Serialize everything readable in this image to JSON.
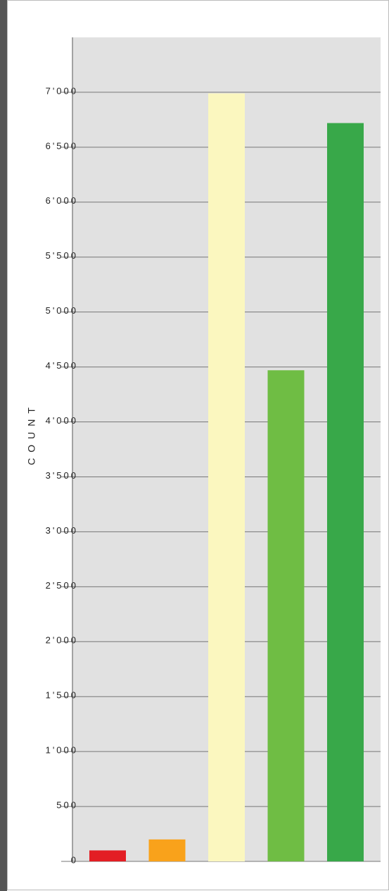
{
  "chart_data": {
    "type": "bar",
    "y_label": "COUNT",
    "categories": [
      null,
      null,
      null,
      null,
      null
    ],
    "values": [
      100,
      200,
      6990,
      4470,
      6720
    ],
    "colors": [
      "#e31e24",
      "#f9a21b",
      "#fbf7bf",
      "#6fbd44",
      "#38a849"
    ],
    "ylim": [
      0,
      7500
    ],
    "yticks": [
      0,
      {
        "value": 500,
        "label": "500"
      },
      {
        "value": 1000,
        "label": "1'000"
      },
      {
        "value": 1500,
        "label": "1'500"
      },
      {
        "value": 2000,
        "label": "2'000"
      },
      {
        "value": 2500,
        "label": "2'500"
      },
      {
        "value": 3000,
        "label": "3'000"
      },
      {
        "value": 3500,
        "label": "3'500"
      },
      {
        "value": 4000,
        "label": "4'000"
      },
      {
        "value": 4500,
        "label": "4'500"
      },
      {
        "value": 5000,
        "label": "5'000"
      },
      {
        "value": 5500,
        "label": "5'500"
      },
      {
        "value": 6000,
        "label": "6'000"
      },
      {
        "value": 6500,
        "label": "6'500"
      },
      {
        "value": 7000,
        "label": "7'000"
      }
    ],
    "grid": true
  }
}
